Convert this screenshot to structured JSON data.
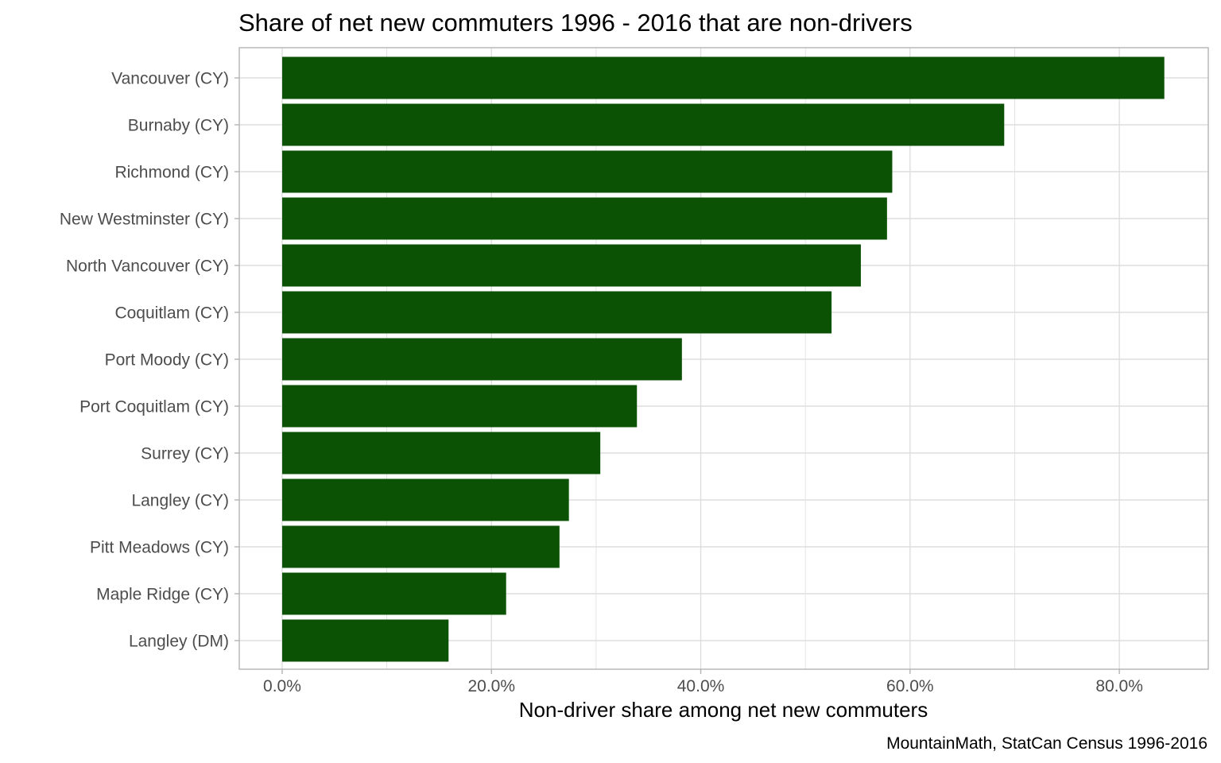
{
  "chart_data": {
    "type": "bar",
    "orientation": "horizontal",
    "title": "Share of net new commuters 1996 - 2016 that are non-drivers",
    "xlabel": "Non-driver share among net new commuters",
    "ylabel": "",
    "caption": "MountainMath, StatCan Census 1996-2016",
    "categories": [
      "Vancouver (CY)",
      "Burnaby (CY)",
      "Richmond (CY)",
      "New Westminster (CY)",
      "North Vancouver (CY)",
      "Coquitlam (CY)",
      "Port Moody (CY)",
      "Port Coquitlam (CY)",
      "Surrey (CY)",
      "Langley (CY)",
      "Pitt Meadows (CY)",
      "Maple Ridge (CY)",
      "Langley (DM)"
    ],
    "values": [
      0.843,
      0.69,
      0.583,
      0.578,
      0.553,
      0.525,
      0.382,
      0.339,
      0.304,
      0.274,
      0.265,
      0.214,
      0.159
    ],
    "xlim": [
      -0.041,
      0.885
    ],
    "x_ticks": [
      0,
      0.2,
      0.4,
      0.6,
      0.8
    ],
    "x_tick_labels": [
      "0.0%",
      "20.0%",
      "40.0%",
      "60.0%",
      "80.0%"
    ],
    "grid": true,
    "colors": {
      "bar": "#0c5204",
      "grid": "#dedede",
      "panel_border": "#b3b3b3",
      "tick_label": "#4d4d4d"
    }
  }
}
